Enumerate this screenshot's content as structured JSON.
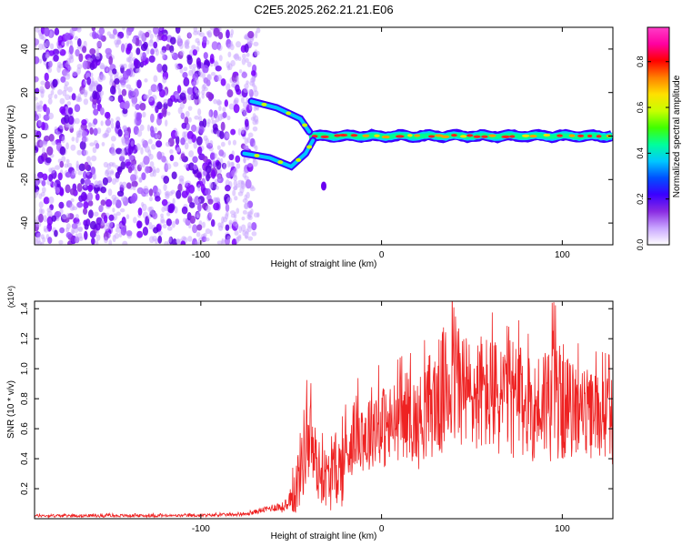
{
  "title": "C2E5.2025.262.21.21.E06",
  "chart_data": [
    {
      "type": "heatmap",
      "name": "spectrogram",
      "xlabel": "Height of straight line (km)",
      "ylabel": "Frequency (Hz)",
      "xlim": [
        -192,
        128
      ],
      "ylim": [
        -50,
        50
      ],
      "xticks": [
        -100,
        0,
        100
      ],
      "xtick_labels": [
        "-100",
        "0",
        "100"
      ],
      "yticks": [
        -40,
        -20,
        0,
        20,
        40
      ],
      "ytick_labels": [
        "-40",
        "-20",
        "0",
        "20",
        "40"
      ],
      "colorbar": {
        "label": "Normalized spectral amplitude",
        "range": [
          0.0,
          0.95
        ],
        "ticks": [
          0.0,
          0.2,
          0.4,
          0.6,
          0.8
        ],
        "tick_labels": [
          "0.0",
          "0.2",
          "0.4",
          "0.6",
          "0.8"
        ],
        "colormap": [
          "#ffffff",
          "#c9a6ff",
          "#8a2be2",
          "#3b00ff",
          "#0050ff",
          "#00c8ff",
          "#00ff9a",
          "#40ff00",
          "#c8ff00",
          "#ffe000",
          "#ff8000",
          "#ff0000",
          "#ff00a0",
          "#ff3cc8"
        ]
      },
      "features": {
        "noise_region_x": [
          -192,
          -72
        ],
        "carrier_freq_hz": 0,
        "carrier_start_km": -40,
        "branch_upper": [
          [
            -72,
            16
          ],
          [
            -58,
            13
          ],
          [
            -45,
            8
          ],
          [
            -40,
            2
          ]
        ],
        "branch_lower": [
          [
            -76,
            -8
          ],
          [
            -62,
            -10
          ],
          [
            -50,
            -14
          ],
          [
            -42,
            -8
          ],
          [
            -38,
            -2
          ]
        ],
        "stray_blob": [
          -32,
          -23
        ]
      }
    },
    {
      "type": "line",
      "name": "snr",
      "xlabel": "Height of straight line (km)",
      "ylabel": "SNR (10 * v/v)",
      "y_multiplier": "(x10⁴)",
      "xlim": [
        -192,
        128
      ],
      "ylim": [
        0,
        1.45
      ],
      "xticks": [
        -100,
        0,
        100
      ],
      "xtick_labels": [
        "-100",
        "0",
        "100"
      ],
      "yticks": [
        0.2,
        0.4,
        0.6,
        0.8,
        1.0,
        1.2,
        1.4
      ],
      "ytick_labels": [
        "0.2",
        "0.4",
        "0.6",
        "0.8",
        "1.0",
        "1.2",
        "1.4"
      ],
      "series": [
        {
          "name": "SNR",
          "color": "#ee2222",
          "x": [
            -192,
            -170,
            -150,
            -130,
            -110,
            -90,
            -75,
            -65,
            -58,
            -52,
            -47,
            -43,
            -40,
            -37,
            -34,
            -31,
            -28,
            -25,
            -22,
            -19,
            -16,
            -12,
            -8,
            -4,
            0,
            5,
            10,
            15,
            20,
            25,
            30,
            35,
            40,
            45,
            50,
            55,
            60,
            65,
            70,
            75,
            80,
            85,
            90,
            95,
            100,
            105,
            110,
            115,
            120,
            125,
            128
          ],
          "values": [
            0.02,
            0.02,
            0.02,
            0.02,
            0.02,
            0.025,
            0.03,
            0.06,
            0.08,
            0.07,
            0.22,
            0.45,
            0.55,
            0.4,
            0.3,
            0.28,
            0.25,
            0.35,
            0.32,
            0.45,
            0.55,
            0.6,
            0.55,
            0.65,
            0.62,
            0.6,
            0.68,
            0.7,
            0.62,
            0.75,
            0.78,
            0.85,
            0.95,
            0.88,
            0.8,
            0.85,
            0.82,
            0.8,
            0.85,
            0.78,
            0.75,
            0.72,
            0.8,
            0.82,
            0.78,
            0.72,
            0.75,
            0.68,
            0.7,
            0.68,
            0.65
          ],
          "amplitude": [
            0.01,
            0.01,
            0.01,
            0.01,
            0.01,
            0.01,
            0.01,
            0.02,
            0.03,
            0.04,
            0.2,
            0.3,
            0.3,
            0.25,
            0.2,
            0.2,
            0.2,
            0.25,
            0.25,
            0.25,
            0.25,
            0.25,
            0.3,
            0.28,
            0.28,
            0.3,
            0.28,
            0.3,
            0.3,
            0.35,
            0.38,
            0.45,
            0.5,
            0.42,
            0.38,
            0.4,
            0.4,
            0.4,
            0.45,
            0.4,
            0.35,
            0.35,
            0.4,
            0.45,
            0.4,
            0.32,
            0.3,
            0.3,
            0.3,
            0.3,
            0.3
          ]
        }
      ]
    }
  ]
}
